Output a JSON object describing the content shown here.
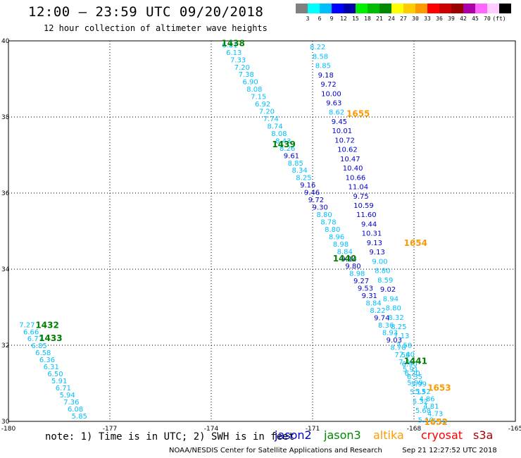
{
  "header": {
    "title": "12:00 – 23:59 UTC 09/20/2018",
    "subtitle": "12 hour collection of altimeter wave heights"
  },
  "colorbar": {
    "colors": [
      "#808080",
      "#00ffff",
      "#00bfff",
      "#0000ff",
      "#0000aa",
      "#00ee00",
      "#00bb00",
      "#008800",
      "#ffff00",
      "#ffcc00",
      "#ff9900",
      "#ff0000",
      "#cc0000",
      "#990000",
      "#aa00aa",
      "#ff66ff",
      "#ffccff",
      "#000000"
    ],
    "labels": [
      "3",
      "6",
      "9",
      "12",
      "15",
      "18",
      "21",
      "24",
      "27",
      "30",
      "33",
      "36",
      "39",
      "42",
      "45",
      "70",
      "(ft)"
    ]
  },
  "axes": {
    "lon_ticks": [
      "-180",
      "-177",
      "-174",
      "-171",
      "-168",
      "-165"
    ],
    "lat_ticks": [
      "40",
      "38",
      "36",
      "34",
      "32",
      "30"
    ]
  },
  "track_labels": [
    {
      "text": "1438",
      "color": "#008000",
      "lon": -173.7,
      "lat": 39.95
    },
    {
      "text": "1439",
      "color": "#008000",
      "lon": -172.2,
      "lat": 37.3
    },
    {
      "text": "1440",
      "color": "#008000",
      "lon": -170.4,
      "lat": 34.3
    },
    {
      "text": "1441",
      "color": "#008000",
      "lon": -168.3,
      "lat": 31.6
    },
    {
      "text": "1432",
      "color": "#008000",
      "lon": -179.2,
      "lat": 32.55
    },
    {
      "text": "1433",
      "color": "#008000",
      "lon": -179.1,
      "lat": 32.2
    },
    {
      "text": "1655",
      "color": "#ff9900",
      "lon": -170.0,
      "lat": 38.1
    },
    {
      "text": "1654",
      "color": "#ff9900",
      "lon": -168.3,
      "lat": 34.7
    },
    {
      "text": "1653",
      "color": "#ff9900",
      "lon": -167.6,
      "lat": 30.9
    },
    {
      "text": "1652",
      "color": "#ff9900",
      "lon": -167.7,
      "lat": 30.0
    }
  ],
  "tracks": [
    {
      "name": "1438_1439",
      "color": "#00bfff",
      "lon_start": -173.45,
      "lat_start": 39.9,
      "lon_end": -167.25,
      "lat_end": 30.02,
      "values": [
        "6.81",
        "6.13",
        "7.33",
        "7.20",
        "7.38",
        "6.90",
        "8.08",
        "7.15",
        "6.92",
        "7.20",
        "7.74",
        "8.74",
        "8.08",
        "8.43",
        "8.26",
        "9.61",
        "8.85",
        "8.34",
        "8.25",
        "9.16",
        "9.46",
        "9.72",
        "9.30",
        "8.80",
        "8.78",
        "8.80",
        "8.96",
        "8.98",
        "8.84",
        "9.14",
        "9.80",
        "8.98",
        "9.27",
        "9.53",
        "9.31",
        "8.84",
        "8.22",
        "9.74",
        "8.36",
        "8.93",
        "9.03",
        "8.78",
        "7.58",
        "7.40",
        "5.91",
        "6.35",
        "5.99",
        "5.52",
        "4.86",
        "4.81",
        "4.73",
        "5.10"
      ],
      "colors": [
        "c",
        "c",
        "c",
        "c",
        "c",
        "c",
        "c",
        "c",
        "c",
        "c",
        "c",
        "c",
        "c",
        "c",
        "c",
        "b",
        "c",
        "c",
        "c",
        "b",
        "b",
        "b",
        "b",
        "c",
        "c",
        "c",
        "c",
        "c",
        "c",
        "b",
        "b",
        "c",
        "b",
        "b",
        "b",
        "c",
        "c",
        "b",
        "c",
        "c",
        "b",
        "c",
        "c",
        "c",
        "c",
        "c",
        "c",
        "c",
        "c",
        "c",
        "c",
        "c"
      ]
    },
    {
      "name": "1655_1652",
      "color": "#0000cc",
      "lon_start": -170.85,
      "lat_start": 39.85,
      "lon_end": -167.65,
      "lat_end": 30.05,
      "values": [
        "8.22",
        "8.58",
        "8.85",
        "9.18",
        "9.72",
        "10.00",
        "9.63",
        "8.62",
        "9.45",
        "10.01",
        "10.72",
        "10.62",
        "10.47",
        "10.40",
        "10.66",
        "11.04",
        "9.75",
        "10.59",
        "11.60",
        "9.44",
        "10.31",
        "9.13",
        "9.13",
        "9.00",
        "8.80",
        "8.59",
        "9.02",
        "8.94",
        "8.80",
        "8.32",
        "8.25",
        "7.13",
        "7.58",
        "7.40",
        "6.90",
        "6.20",
        "5.99",
        "5.13",
        "5.32",
        "5.68",
        "5.10"
      ],
      "colors": [
        "c",
        "c",
        "c",
        "b",
        "b",
        "b",
        "b",
        "c",
        "b",
        "b",
        "b",
        "b",
        "b",
        "b",
        "b",
        "b",
        "b",
        "b",
        "b",
        "b",
        "b",
        "b",
        "b",
        "c",
        "c",
        "c",
        "b",
        "c",
        "c",
        "c",
        "c",
        "c",
        "c",
        "c",
        "c",
        "c",
        "c",
        "c",
        "c",
        "c",
        "c"
      ]
    },
    {
      "name": "1432_1433",
      "color": "#00bfff",
      "lon_start": -179.45,
      "lat_start": 32.55,
      "lon_end": -177.9,
      "lat_end": 30.15,
      "values": [
        "7.27",
        "6.66",
        "6.77",
        "6.85",
        "6.58",
        "6.36",
        "6.31",
        "6.50",
        "5.91",
        "6.71",
        "5.94",
        "7.36",
        "6.08",
        "5.85"
      ],
      "colors": [
        "c",
        "c",
        "c",
        "c",
        "c",
        "c",
        "c",
        "c",
        "c",
        "c",
        "c",
        "c",
        "c",
        "c"
      ]
    }
  ],
  "footer": {
    "note": "note: 1) Time is in UTC; 2) SWH is in feet",
    "legend": [
      {
        "label": "jason2",
        "color": "#0000cc"
      },
      {
        "label": "jason3",
        "color": "#008800"
      },
      {
        "label": "altika",
        "color": "#ff9900"
      },
      {
        "label": "cryosat",
        "color": "#ff0000"
      },
      {
        "label": "s3a",
        "color": "#aa0000"
      }
    ],
    "credit": "NOAA/NESDIS Center for Satellite Applications and Research",
    "timestamp": "Sep 21 12:27:52 UTC 2018"
  }
}
